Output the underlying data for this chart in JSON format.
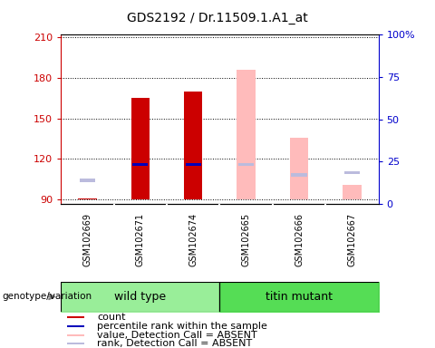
{
  "title": "GDS2192 / Dr.11509.1.A1_at",
  "samples": [
    "GSM102669",
    "GSM102671",
    "GSM102674",
    "GSM102665",
    "GSM102666",
    "GSM102667"
  ],
  "ylim_left": [
    87,
    212
  ],
  "ylim_right": [
    0,
    100
  ],
  "yticks_left": [
    90,
    120,
    150,
    180,
    210
  ],
  "yticks_right": [
    0,
    25,
    50,
    75,
    100
  ],
  "yticklabels_right": [
    "0",
    "25",
    "50",
    "75",
    "100%"
  ],
  "bar_bottom": 90,
  "count_values": [
    91,
    165,
    170,
    null,
    null,
    null
  ],
  "count_color": "#cc0000",
  "percentile_values": [
    null,
    116,
    116,
    null,
    null,
    null
  ],
  "percentile_color": "#0000bb",
  "absent_value_values": [
    91,
    null,
    null,
    186,
    136,
    101
  ],
  "absent_value_color": "#ffbbbb",
  "absent_rank_values": [
    104,
    null,
    null,
    116,
    108,
    110
  ],
  "absent_rank_color": "#bbbbdd",
  "bar_width": 0.35,
  "sample_bg_color": "#cccccc",
  "plot_bg": "#ffffff",
  "left_axis_color": "#cc0000",
  "right_axis_color": "#0000cc",
  "wt_color": "#99ee99",
  "tm_color": "#55dd55",
  "legend_items": [
    {
      "label": "count",
      "color": "#cc0000"
    },
    {
      "label": "percentile rank within the sample",
      "color": "#0000bb"
    },
    {
      "label": "value, Detection Call = ABSENT",
      "color": "#ffbbbb"
    },
    {
      "label": "rank, Detection Call = ABSENT",
      "color": "#bbbbdd"
    }
  ],
  "genotype_label": "genotype/variation",
  "title_fontsize": 10,
  "tick_fontsize": 8,
  "sample_fontsize": 7,
  "legend_fontsize": 8,
  "group_fontsize": 9
}
